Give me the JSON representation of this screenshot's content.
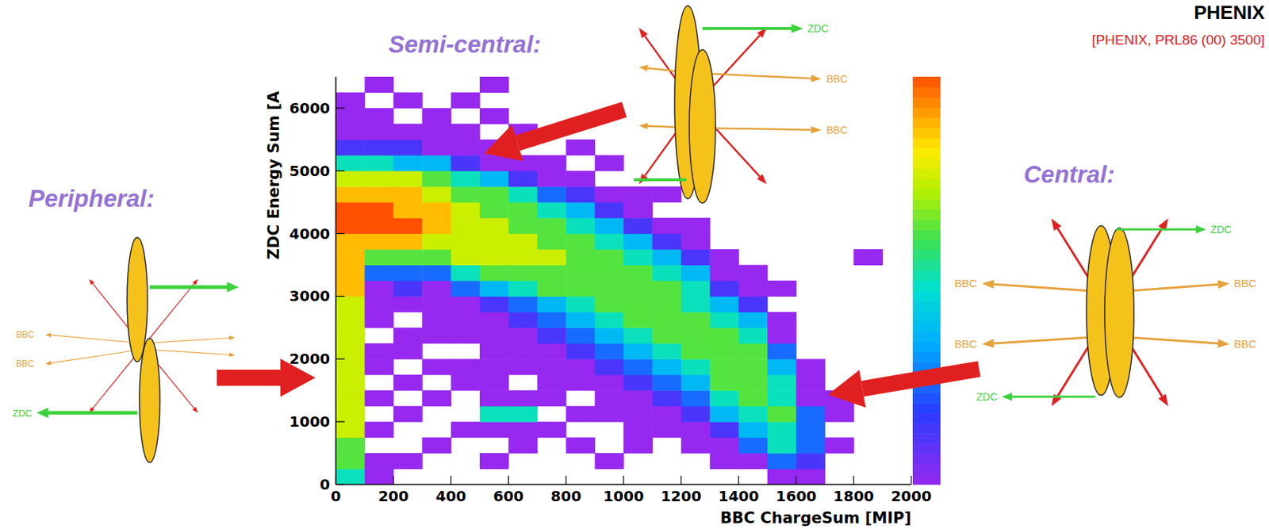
{
  "chart_data": {
    "type": "heatmap",
    "x_label": "BBC ChargeSum [MIP]",
    "y_label": "ZDC Energy Sum [A",
    "xlim": [
      0,
      2000
    ],
    "ylim": [
      0,
      6500
    ],
    "xticks": [
      0,
      200,
      400,
      600,
      800,
      1000,
      1200,
      1400,
      1600,
      1800,
      2000
    ],
    "yticks": [
      0,
      1000,
      2000,
      3000,
      4000,
      5000,
      6000
    ],
    "xbins": [
      0,
      100,
      200,
      300,
      400,
      500,
      600,
      700,
      800,
      900,
      1000,
      1100,
      1200,
      1300,
      1400,
      1500,
      1600,
      1700,
      1800,
      1900,
      2000
    ],
    "ybins": [
      0,
      250,
      500,
      750,
      1000,
      1250,
      1500,
      1750,
      2000,
      2250,
      2500,
      2750,
      3000,
      3250,
      3500,
      3750,
      4000,
      4250,
      4500,
      4750,
      5000,
      5250,
      5500,
      5750,
      6000,
      6250,
      6500
    ],
    "z": [
      [
        5,
        6,
        6,
        7,
        7,
        7,
        7,
        7,
        7,
        7,
        7,
        7,
        8,
        8,
        8,
        8,
        9,
        9,
        8,
        7,
        5,
        2,
        1,
        1,
        1,
        0
      ],
      [
        1,
        1,
        0,
        1,
        0,
        1,
        0,
        1,
        1,
        0,
        1,
        1,
        1,
        3,
        6,
        8,
        9,
        9,
        8,
        7,
        5,
        2,
        1,
        1,
        0,
        1
      ],
      [
        0,
        1,
        0,
        0,
        1,
        0,
        1,
        0,
        1,
        1,
        0,
        1,
        2,
        3,
        6,
        8,
        9,
        8,
        8,
        7,
        4,
        2,
        1,
        0,
        1,
        0
      ],
      [
        0,
        0,
        1,
        0,
        0,
        1,
        0,
        1,
        0,
        1,
        1,
        1,
        1,
        3,
        6,
        7,
        8,
        8,
        7,
        6,
        4,
        1,
        1,
        1,
        0,
        0
      ],
      [
        0,
        0,
        0,
        1,
        0,
        0,
        1,
        1,
        0,
        1,
        1,
        1,
        3,
        5,
        7,
        7,
        7,
        7,
        6,
        5,
        2,
        1,
        1,
        0,
        1,
        0
      ],
      [
        0,
        1,
        0,
        1,
        5,
        1,
        1,
        1,
        1,
        1,
        1,
        2,
        4,
        6,
        7,
        7,
        7,
        6,
        6,
        4,
        1,
        1,
        0,
        1,
        0,
        1
      ],
      [
        0,
        0,
        1,
        1,
        5,
        1,
        0,
        1,
        1,
        1,
        2,
        3,
        5,
        6,
        7,
        7,
        6,
        6,
        5,
        2,
        1,
        0,
        1,
        0,
        0,
        0
      ],
      [
        0,
        0,
        0,
        1,
        0,
        1,
        1,
        1,
        1,
        2,
        3,
        4,
        6,
        6,
        7,
        6,
        6,
        5,
        3,
        1,
        1,
        0,
        0,
        0,
        0,
        0
      ],
      [
        0,
        0,
        1,
        0,
        1,
        0,
        1,
        1,
        2,
        3,
        4,
        5,
        6,
        6,
        6,
        6,
        5,
        4,
        2,
        1,
        0,
        1,
        0,
        0,
        0,
        0
      ],
      [
        0,
        1,
        0,
        0,
        1,
        1,
        1,
        2,
        3,
        4,
        5,
        6,
        6,
        6,
        6,
        5,
        4,
        2,
        1,
        0,
        1,
        0,
        0,
        0,
        0,
        0
      ],
      [
        0,
        0,
        1,
        1,
        1,
        1,
        2,
        3,
        4,
        5,
        6,
        6,
        6,
        6,
        5,
        4,
        2,
        1,
        1,
        0,
        0,
        0,
        0,
        0,
        0,
        0
      ],
      [
        0,
        0,
        0,
        1,
        1,
        2,
        3,
        4,
        5,
        6,
        6,
        6,
        6,
        5,
        4,
        2,
        1,
        0,
        1,
        0,
        0,
        0,
        0,
        0,
        0,
        0
      ],
      [
        0,
        0,
        1,
        1,
        2,
        3,
        4,
        5,
        6,
        6,
        6,
        5,
        5,
        4,
        2,
        1,
        1,
        0,
        0,
        0,
        0,
        0,
        0,
        0,
        0,
        0
      ],
      [
        0,
        1,
        1,
        2,
        4,
        5,
        6,
        6,
        6,
        6,
        5,
        4,
        2,
        1,
        1,
        0,
        0,
        0,
        0,
        0,
        0,
        0,
        0,
        0,
        0,
        0
      ],
      [
        0,
        1,
        3,
        4,
        5,
        6,
        6,
        6,
        6,
        5,
        4,
        2,
        1,
        1,
        0,
        0,
        0,
        0,
        0,
        0,
        0,
        0,
        0,
        0,
        0,
        0
      ],
      [
        1,
        3,
        5,
        5,
        6,
        5,
        5,
        4,
        3,
        1,
        1,
        0,
        1,
        0,
        0,
        0,
        0,
        0,
        0,
        0,
        0,
        0,
        0,
        0,
        0,
        0
      ],
      [
        1,
        2,
        3,
        3,
        3,
        1,
        1,
        1,
        0,
        0,
        0,
        0,
        0,
        0,
        0,
        0,
        0,
        0,
        0,
        0,
        0,
        0,
        0,
        0,
        0,
        0
      ],
      [
        0,
        0,
        1,
        0,
        1,
        1,
        0,
        0,
        0,
        0,
        0,
        0,
        0,
        0,
        0,
        0,
        0,
        0,
        0,
        0,
        0,
        0,
        0,
        0,
        0,
        0
      ],
      [
        0,
        0,
        0,
        0,
        0,
        0,
        0,
        0,
        0,
        0,
        0,
        0,
        0,
        0,
        1,
        0,
        0,
        0,
        0,
        0,
        0,
        0,
        0,
        0,
        0,
        0
      ],
      [
        0,
        0,
        0,
        0,
        0,
        0,
        0,
        0,
        0,
        0,
        0,
        0,
        0,
        0,
        0,
        0,
        0,
        0,
        0,
        0,
        0,
        0,
        0,
        0,
        0,
        0
      ]
    ],
    "colorbar": {
      "zlim": [
        1,
        9
      ]
    },
    "annotations": {
      "peripheral": "Peripheral:",
      "semi_central": "Semi-central:",
      "central": "Central:",
      "reference": "[PHENIX, PRL86 (00) 3500]",
      "logo": "PHENIX",
      "bbc": "BBC",
      "zdc": "ZDC"
    }
  }
}
